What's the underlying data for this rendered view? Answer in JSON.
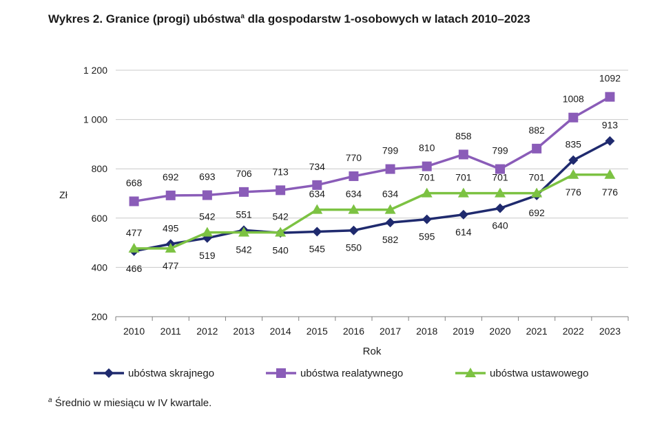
{
  "title": {
    "main": "Wykres 2. Granice (progi) ubóstwa",
    "superscript": "a",
    "rest": " dla gospodarstw 1-osobowych w latach 2010–2023"
  },
  "footnote": {
    "marker": "a",
    "text": " Średnio w miesiącu w IV kwartale."
  },
  "colors": {
    "ubostwa_skrajnego": "#1f2a6e",
    "ubostwa_realatywnego": "#8a5cb8",
    "ubostwa_ustawowego": "#7cc242",
    "grid": "#c8c8c8",
    "axis": "#7f7f7f"
  },
  "chart_data": {
    "type": "line",
    "title": "Wykres 2. Granice (progi) ubóstwa dla gospodarstw 1-osobowych w latach 2010–2023",
    "xlabel": "Rok",
    "ylabel": "Zł",
    "ylim": [
      200,
      1200
    ],
    "yticks": [
      200,
      400,
      600,
      800,
      1000,
      1200
    ],
    "ytick_labels": [
      "200",
      "400",
      "600",
      "800",
      "1 000",
      "1 200"
    ],
    "grid": true,
    "legend_position": "bottom",
    "categories": [
      "2010",
      "2011",
      "2012",
      "2013",
      "2014",
      "2015",
      "2016",
      "2017",
      "2018",
      "2019",
      "2020",
      "2021",
      "2022",
      "2023"
    ],
    "series": [
      {
        "name": "ubóstwa skrajnego",
        "marker": "diamond",
        "color_key": "ubostwa_skrajnego",
        "values": [
          466,
          495,
          519,
          551,
          540,
          545,
          550,
          582,
          595,
          614,
          640,
          692,
          835,
          913
        ]
      },
      {
        "name": "ubóstwa realatywnego",
        "marker": "square",
        "color_key": "ubostwa_realatywnego",
        "values": [
          668,
          692,
          693,
          706,
          713,
          734,
          770,
          799,
          810,
          858,
          799,
          882,
          1008,
          1092
        ]
      },
      {
        "name": "ubóstwa ustawowego",
        "marker": "triangle",
        "color_key": "ubostwa_ustawowego",
        "values": [
          477,
          477,
          542,
          542,
          542,
          634,
          634,
          634,
          701,
          701,
          701,
          701,
          776,
          776
        ]
      }
    ]
  }
}
